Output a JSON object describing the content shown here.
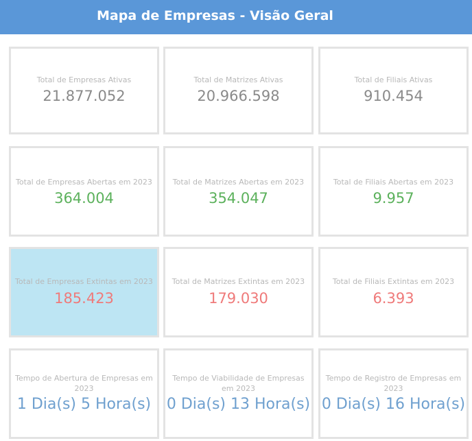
{
  "header": {
    "title": "Mapa de Empresas - Visão Geral"
  },
  "colors": {
    "header_bg": "#5a97d8",
    "neutral_value": "#8a8a8a",
    "positive_value": "#5cb15c",
    "negative_value": "#ef7a7a",
    "time_value": "#6fa0cf",
    "selected_card_bg": "#bde5f3"
  },
  "cards": {
    "ativas": {
      "empresas": {
        "label": "Total de Empresas Ativas",
        "value": "21.877.052"
      },
      "matrizes": {
        "label": "Total de Matrizes Ativas",
        "value": "20.966.598"
      },
      "filiais": {
        "label": "Total de Filiais Ativas",
        "value": "910.454"
      }
    },
    "abertas": {
      "empresas": {
        "label": "Total de Empresas Abertas em 2023",
        "value": "364.004"
      },
      "matrizes": {
        "label": "Total de Matrizes Abertas em 2023",
        "value": "354.047"
      },
      "filiais": {
        "label": "Total de Filiais Abertas em 2023",
        "value": "9.957"
      }
    },
    "extintas": {
      "empresas": {
        "label": "Total de Empresas Extintas em 2023",
        "value": "185.423",
        "selected": true
      },
      "matrizes": {
        "label": "Total de Matrizes Extintas em 2023",
        "value": "179.030"
      },
      "filiais": {
        "label": "Total de Filiais Extintas em 2023",
        "value": "6.393"
      }
    },
    "tempo": {
      "abertura": {
        "label": "Tempo de Abertura de Empresas em 2023",
        "value": "1 Dia(s) 5 Hora(s)"
      },
      "viabilidade": {
        "label": "Tempo de Viabilidade de Empresas em 2023",
        "value": "0 Dia(s) 13 Hora(s)"
      },
      "registro": {
        "label": "Tempo de Registro de Empresas em 2023",
        "value": "0 Dia(s) 16 Hora(s)"
      }
    }
  }
}
